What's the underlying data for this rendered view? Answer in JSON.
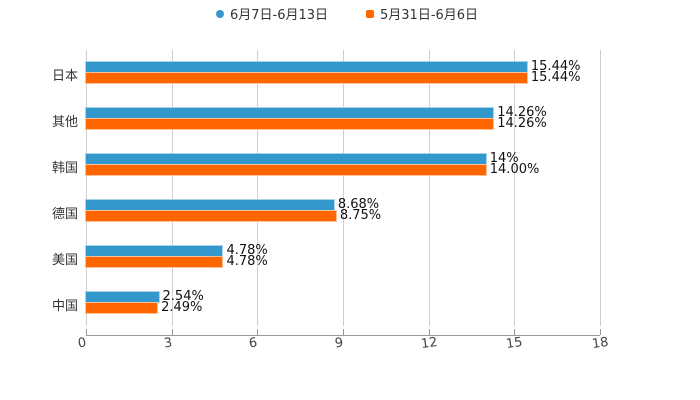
{
  "legend": [
    {
      "label": "6月7日-6月13日",
      "color": "#3399cc",
      "marker": "circle"
    },
    {
      "label": "5月31日-6月6日",
      "color": "#ff6600",
      "marker": "square"
    }
  ],
  "xaxis": {
    "ticks": [
      "0",
      "3",
      "6",
      "9",
      "12",
      "15",
      "18"
    ]
  },
  "categories": [
    {
      "name": "日本",
      "a_label": "15.44%",
      "b_label": "15.44%"
    },
    {
      "name": "其他",
      "a_label": "14.26%",
      "b_label": "14.26%"
    },
    {
      "name": "韩国",
      "a_label": "14%",
      "b_label": "14.00%"
    },
    {
      "name": "德国",
      "a_label": "8.68%",
      "b_label": "8.75%"
    },
    {
      "name": "美国",
      "a_label": "4.78%",
      "b_label": "4.78%"
    },
    {
      "name": "中国",
      "a_label": "2.54%",
      "b_label": "2.49%"
    }
  ],
  "chart_data": {
    "type": "bar",
    "orientation": "horizontal",
    "title": "",
    "xlabel": "",
    "ylabel": "",
    "categories": [
      "日本",
      "其他",
      "韩国",
      "德国",
      "美国",
      "中国"
    ],
    "series": [
      {
        "name": "6月7日-6月13日",
        "color": "#3399cc",
        "values": [
          15.44,
          14.26,
          14.0,
          8.68,
          4.78,
          2.54
        ]
      },
      {
        "name": "5月31日-6月6日",
        "color": "#ff6600",
        "values": [
          15.44,
          14.26,
          14.0,
          8.75,
          4.78,
          2.49
        ]
      }
    ],
    "xlim": [
      0,
      18
    ],
    "xticks": [
      0,
      3,
      6,
      9,
      12,
      15,
      18
    ],
    "grid": true,
    "legend_position": "top",
    "data_labels": true
  }
}
